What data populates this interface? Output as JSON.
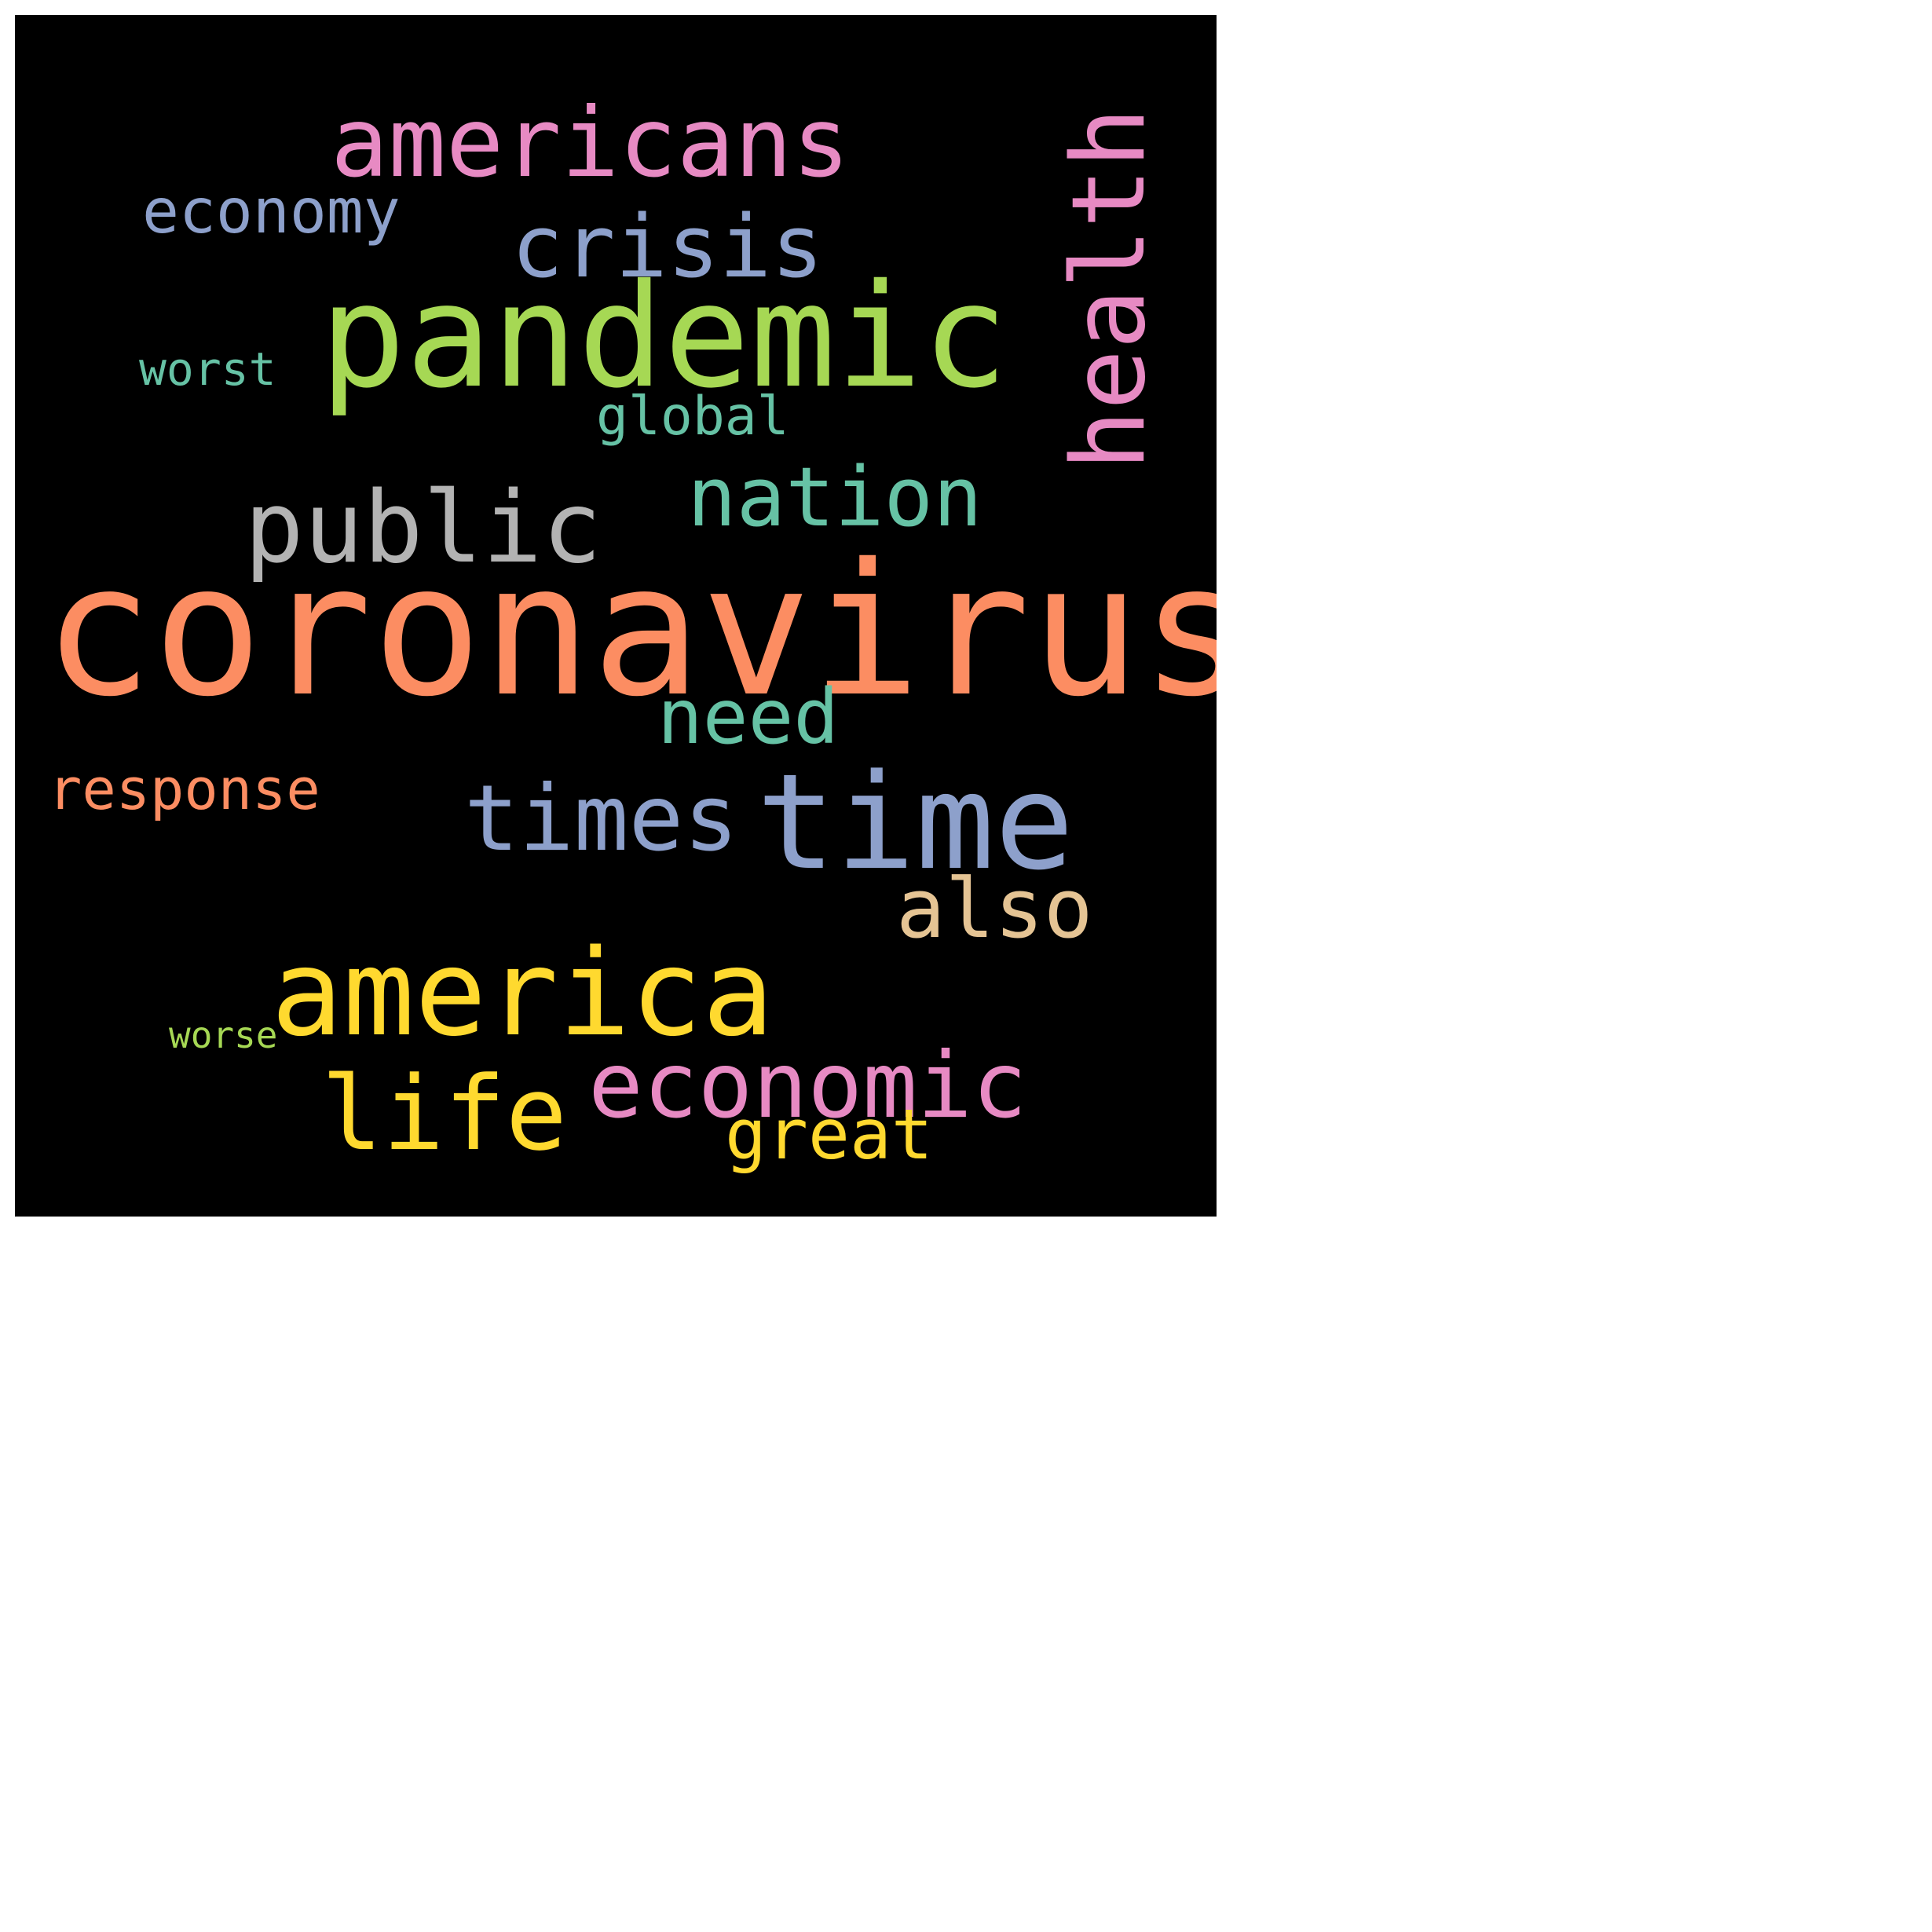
{
  "words": [
    {
      "id": "coronavirus",
      "text": "coronavirus",
      "color": "#fc8d62",
      "orientation": "horizontal"
    },
    {
      "id": "pandemic",
      "text": "pandemic",
      "color": "#a6d854",
      "orientation": "horizontal"
    },
    {
      "id": "americans",
      "text": "americans",
      "color": "#e78ac3",
      "orientation": "horizontal"
    },
    {
      "id": "health",
      "text": "health",
      "color": "#e78ac3",
      "orientation": "vertical"
    },
    {
      "id": "time",
      "text": "time",
      "color": "#8da0cb",
      "orientation": "horizontal"
    },
    {
      "id": "america",
      "text": "america",
      "color": "#ffd92f",
      "orientation": "horizontal"
    },
    {
      "id": "public",
      "text": "public",
      "color": "#b3b3b3",
      "orientation": "horizontal"
    },
    {
      "id": "crisis",
      "text": "crisis",
      "color": "#8da0cb",
      "orientation": "horizontal"
    },
    {
      "id": "nation",
      "text": "nation",
      "color": "#66c2a5",
      "orientation": "horizontal"
    },
    {
      "id": "times",
      "text": "times",
      "color": "#8da0cb",
      "orientation": "horizontal"
    },
    {
      "id": "life",
      "text": "life",
      "color": "#ffd92f",
      "orientation": "horizontal"
    },
    {
      "id": "economic",
      "text": "economic",
      "color": "#e78ac3",
      "orientation": "horizontal"
    },
    {
      "id": "also",
      "text": "also",
      "color": "#e5c494",
      "orientation": "horizontal"
    },
    {
      "id": "need",
      "text": "need",
      "color": "#66c2a5",
      "orientation": "horizontal"
    },
    {
      "id": "economy",
      "text": "economy",
      "color": "#8da0cb",
      "orientation": "horizontal"
    },
    {
      "id": "great",
      "text": "great",
      "color": "#ffd92f",
      "orientation": "horizontal"
    },
    {
      "id": "response",
      "text": "response",
      "color": "#fc8d62",
      "orientation": "horizontal"
    },
    {
      "id": "global",
      "text": "global",
      "color": "#66c2a5",
      "orientation": "horizontal"
    },
    {
      "id": "worst",
      "text": "worst",
      "color": "#66c2a5",
      "orientation": "horizontal"
    },
    {
      "id": "worse",
      "text": "worse",
      "color": "#a6d854",
      "orientation": "horizontal"
    }
  ]
}
